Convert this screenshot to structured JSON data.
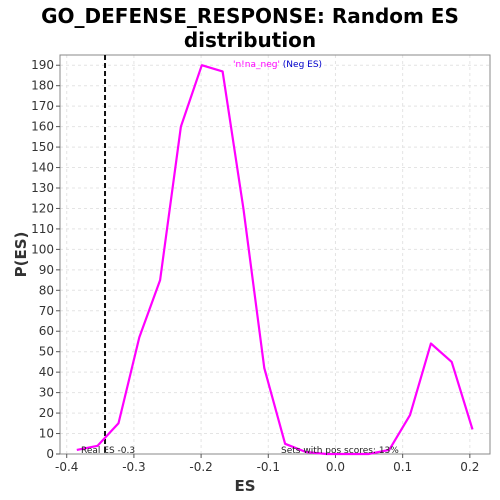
{
  "title_line1": "GO_DEFENSE_RESPONSE: Random ES",
  "title_line2": "distribution",
  "chart_data": {
    "type": "line",
    "title": "GO_DEFENSE_RESPONSE: Random ES distribution",
    "xlabel": "ES",
    "ylabel": "P(ES)",
    "xlim": [
      -0.41,
      0.23
    ],
    "ylim": [
      0,
      195
    ],
    "x_ticks": [
      -0.4,
      -0.3,
      -0.2,
      -0.1,
      0.0,
      0.1,
      0.2
    ],
    "x_tick_labels": [
      "-0.4",
      "-0.3",
      "-0.2",
      "-0.1",
      "0.0",
      "0.1",
      "0.2"
    ],
    "y_ticks": [
      0,
      10,
      20,
      30,
      40,
      50,
      60,
      70,
      80,
      90,
      100,
      110,
      120,
      130,
      140,
      150,
      160,
      170,
      180,
      190
    ],
    "grid": true,
    "series": [
      {
        "name": "'n!na_neg'",
        "color": "#ff00ff",
        "x": [
          -0.385,
          -0.354,
          -0.323,
          -0.292,
          -0.261,
          -0.23,
          -0.199,
          -0.168,
          -0.137,
          -0.106,
          -0.075,
          -0.044,
          -0.013,
          0.018,
          0.049,
          0.08,
          0.111,
          0.142,
          0.173,
          0.204
        ],
        "y": [
          2,
          4,
          15,
          57,
          85,
          160,
          190,
          187,
          120,
          42,
          5,
          1,
          0,
          0,
          0,
          2,
          19,
          54,
          45,
          12
        ]
      }
    ],
    "legend": {
      "series_label": "'n!na_neg'",
      "note": " (Neg ES)",
      "placement": "top-center"
    },
    "real_es": {
      "value": -0.343,
      "label": "Real ES -0.3"
    },
    "annotation": "Sets with pos scores: 13%"
  }
}
